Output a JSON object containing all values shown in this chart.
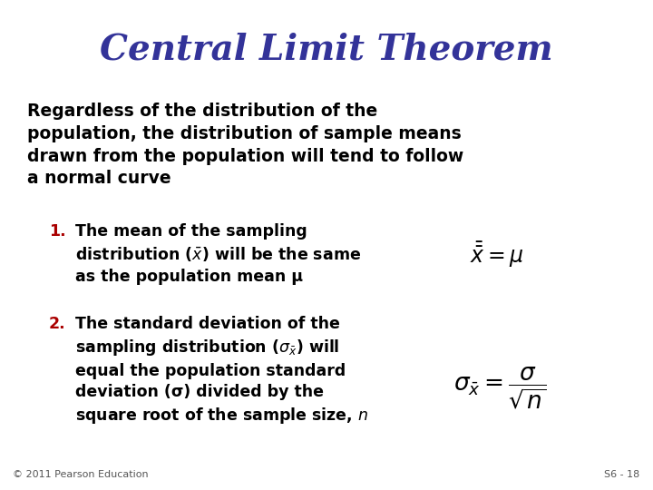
{
  "title": "Central Limit Theorem",
  "title_color": "#333399",
  "title_fontsize": 28,
  "bg_color": "#FFFFFF",
  "text_color": "#000000",
  "number_color": "#AA0000",
  "footer_left": "© 2011 Pearson Education",
  "footer_right": "S6 - 18",
  "footer_color": "#555555",
  "footer_fontsize": 8,
  "intro_fontsize": 13.5,
  "item_fontsize": 12.5,
  "formula1_fontsize": 17,
  "formula2_fontsize": 17
}
